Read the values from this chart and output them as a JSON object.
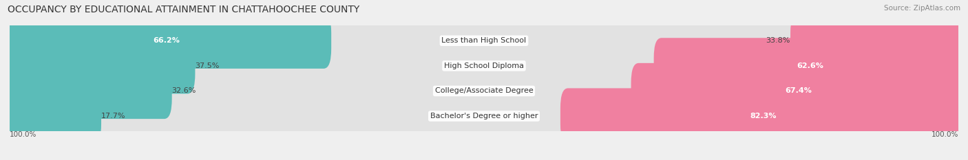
{
  "title": "OCCUPANCY BY EDUCATIONAL ATTAINMENT IN CHATTAHOOCHEE COUNTY",
  "source": "Source: ZipAtlas.com",
  "categories": [
    "Less than High School",
    "High School Diploma",
    "College/Associate Degree",
    "Bachelor's Degree or higher"
  ],
  "owner_pct": [
    66.2,
    37.5,
    32.6,
    17.7
  ],
  "renter_pct": [
    33.8,
    62.6,
    67.4,
    82.3
  ],
  "owner_color": "#5bbcb8",
  "renter_color": "#f080a0",
  "bg_color": "#efefef",
  "bar_bg_color": "#e2e2e2",
  "title_fontsize": 10,
  "label_fontsize": 8.0,
  "tick_fontsize": 7.5,
  "source_fontsize": 7.5,
  "legend_fontsize": 8.0,
  "axis_label_left": "100.0%",
  "axis_label_right": "100.0%",
  "bar_height": 0.62,
  "figsize": [
    14.06,
    2.33
  ]
}
